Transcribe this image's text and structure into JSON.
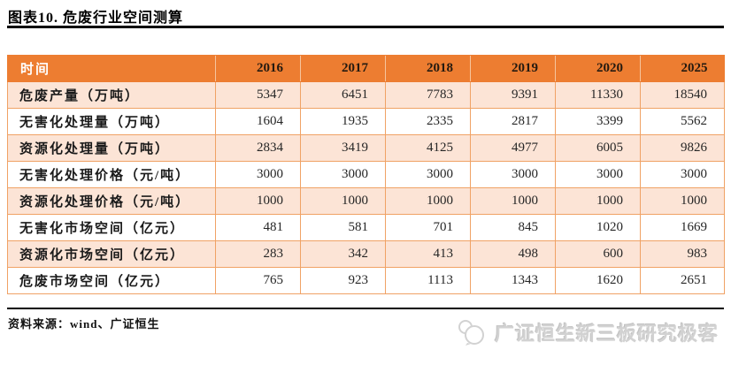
{
  "title": "图表10. 危废行业空间测算",
  "table": {
    "header": [
      "时间",
      "2016",
      "2017",
      "2018",
      "2019",
      "2020",
      "2025"
    ],
    "rows": [
      {
        "label": "危废产量（万吨）",
        "values": [
          "5347",
          "6451",
          "7783",
          "9391",
          "11330",
          "18540"
        ]
      },
      {
        "label": "无害化处理量（万吨）",
        "values": [
          "1604",
          "1935",
          "2335",
          "2817",
          "3399",
          "5562"
        ]
      },
      {
        "label": "资源化处理量（万吨）",
        "values": [
          "2834",
          "3419",
          "4125",
          "4977",
          "6005",
          "9826"
        ]
      },
      {
        "label": "无害化处理价格（元/吨）",
        "values": [
          "3000",
          "3000",
          "3000",
          "3000",
          "3000",
          "3000"
        ]
      },
      {
        "label": "资源化处理价格（元/吨）",
        "values": [
          "1000",
          "1000",
          "1000",
          "1000",
          "1000",
          "1000"
        ]
      },
      {
        "label": "无害化市场空间（亿元）",
        "values": [
          "481",
          "581",
          "701",
          "845",
          "1020",
          "1669"
        ]
      },
      {
        "label": "资源化市场空间（亿元）",
        "values": [
          "283",
          "342",
          "413",
          "498",
          "600",
          "983"
        ]
      },
      {
        "label": "危废市场空间（亿元）",
        "values": [
          "765",
          "923",
          "1113",
          "1343",
          "1620",
          "2651"
        ]
      }
    ]
  },
  "chart_data": {
    "type": "table",
    "title": "危废行业空间测算",
    "categories": [
      "2016",
      "2017",
      "2018",
      "2019",
      "2020",
      "2025"
    ],
    "series": [
      {
        "name": "危废产量（万吨）",
        "values": [
          5347,
          6451,
          7783,
          9391,
          11330,
          18540
        ]
      },
      {
        "name": "无害化处理量（万吨）",
        "values": [
          1604,
          1935,
          2335,
          2817,
          3399,
          5562
        ]
      },
      {
        "name": "资源化处理量（万吨）",
        "values": [
          2834,
          3419,
          4125,
          4977,
          6005,
          9826
        ]
      },
      {
        "name": "无害化处理价格（元/吨）",
        "values": [
          3000,
          3000,
          3000,
          3000,
          3000,
          3000
        ]
      },
      {
        "name": "资源化处理价格（元/吨）",
        "values": [
          1000,
          1000,
          1000,
          1000,
          1000,
          1000
        ]
      },
      {
        "name": "无害化市场空间（亿元）",
        "values": [
          481,
          581,
          701,
          845,
          1020,
          1669
        ]
      },
      {
        "name": "资源化市场空间（亿元）",
        "values": [
          283,
          342,
          413,
          498,
          600,
          983
        ]
      },
      {
        "name": "危废市场空间（亿元）",
        "values": [
          765,
          923,
          1113,
          1343,
          1620,
          2651
        ]
      }
    ]
  },
  "source": "资料来源：wind、广证恒生",
  "logo": {
    "text": "广证恒生新三板研究极客",
    "icon": "speech-bubbles-icon"
  },
  "colors": {
    "header_bg": "#ED7D31",
    "row_alt_bg": "#FCE4D6",
    "grid_border": "#F0A265",
    "header_time_text": "#FFFFFF",
    "header_year_text": "#241A10",
    "rule_black": "#000000",
    "logo_gray": "#D2D2D2"
  }
}
